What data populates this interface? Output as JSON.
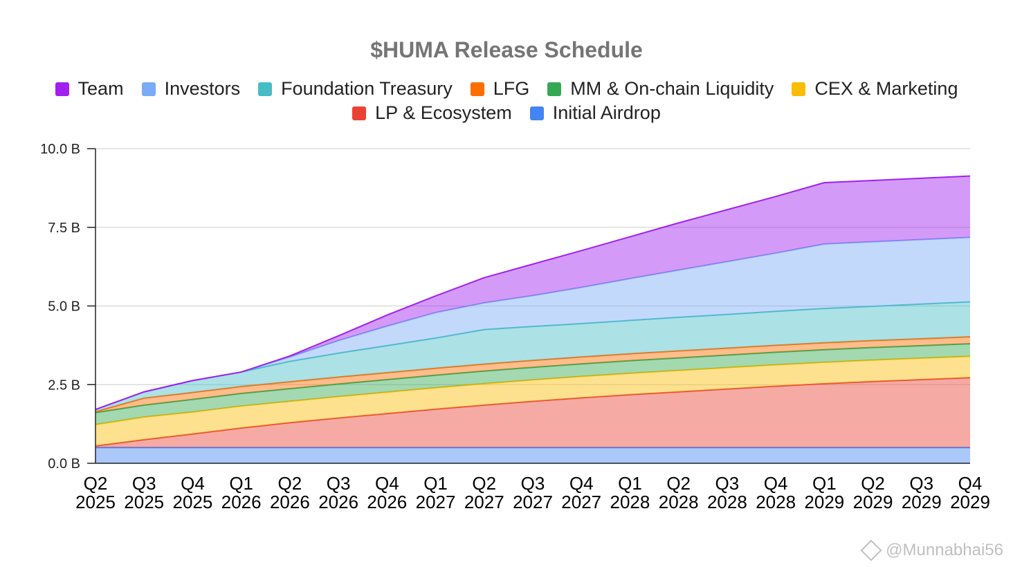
{
  "chart_data": {
    "type": "area",
    "stacked": true,
    "title": "$HUMA Release Schedule",
    "xlabel": "",
    "ylabel": "",
    "ylim": [
      0,
      10
    ],
    "y_ticks": [
      0,
      2.5,
      5,
      7.5,
      10
    ],
    "y_tick_labels": [
      "0.0 B",
      "2.5 B",
      "5.0 B",
      "7.5 B",
      "10.0 B"
    ],
    "grid": true,
    "legend_position": "top",
    "categories": [
      [
        "Q2",
        "2025"
      ],
      [
        "Q3",
        "2025"
      ],
      [
        "Q4",
        "2025"
      ],
      [
        "Q1",
        "2026"
      ],
      [
        "Q2",
        "2026"
      ],
      [
        "Q3",
        "2026"
      ],
      [
        "Q4",
        "2026"
      ],
      [
        "Q1",
        "2027"
      ],
      [
        "Q2",
        "2027"
      ],
      [
        "Q3",
        "2027"
      ],
      [
        "Q4",
        "2027"
      ],
      [
        "Q1",
        "2028"
      ],
      [
        "Q2",
        "2028"
      ],
      [
        "Q3",
        "2028"
      ],
      [
        "Q4",
        "2028"
      ],
      [
        "Q1",
        "2029"
      ],
      [
        "Q2",
        "2029"
      ],
      [
        "Q3",
        "2029"
      ],
      [
        "Q4",
        "2029"
      ]
    ],
    "series": [
      {
        "name": "Initial Airdrop",
        "color": "#4285f4",
        "values": [
          0.5,
          0.5,
          0.5,
          0.5,
          0.5,
          0.5,
          0.5,
          0.5,
          0.5,
          0.5,
          0.5,
          0.5,
          0.5,
          0.5,
          0.5,
          0.5,
          0.5,
          0.5,
          0.5
        ]
      },
      {
        "name": "LP & Ecosystem",
        "color": "#ea4335",
        "values": [
          0.05,
          0.25,
          0.43,
          0.62,
          0.79,
          0.94,
          1.08,
          1.22,
          1.35,
          1.47,
          1.58,
          1.68,
          1.77,
          1.86,
          1.95,
          2.03,
          2.1,
          2.16,
          2.22
        ]
      },
      {
        "name": "CEX & Marketing",
        "color": "#fbbc04",
        "values": [
          0.68,
          0.72,
          0.7,
          0.7,
          0.68,
          0.68,
          0.68,
          0.68,
          0.68,
          0.68,
          0.68,
          0.68,
          0.68,
          0.68,
          0.68,
          0.68,
          0.68,
          0.68,
          0.68
        ]
      },
      {
        "name": "MM & On-chain Liquidity",
        "color": "#34a853",
        "values": [
          0.38,
          0.38,
          0.4,
          0.4,
          0.4,
          0.4,
          0.4,
          0.4,
          0.4,
          0.4,
          0.4,
          0.4,
          0.4,
          0.4,
          0.4,
          0.4,
          0.4,
          0.4,
          0.4
        ]
      },
      {
        "name": "LFG",
        "color": "#ff6d01",
        "values": [
          0.03,
          0.22,
          0.22,
          0.22,
          0.22,
          0.22,
          0.22,
          0.22,
          0.22,
          0.22,
          0.22,
          0.22,
          0.22,
          0.22,
          0.22,
          0.22,
          0.22,
          0.22,
          0.22
        ]
      },
      {
        "name": "Foundation Treasury",
        "color": "#46bdc6",
        "values": [
          0.07,
          0.2,
          0.38,
          0.46,
          0.65,
          0.76,
          0.86,
          0.96,
          1.1,
          1.08,
          1.06,
          1.06,
          1.07,
          1.07,
          1.08,
          1.09,
          1.09,
          1.1,
          1.11
        ]
      },
      {
        "name": "Investors",
        "color": "#7baaf7",
        "values": [
          0,
          0,
          0,
          0,
          0.14,
          0.4,
          0.62,
          0.81,
          0.85,
          0.98,
          1.15,
          1.33,
          1.5,
          1.68,
          1.85,
          2.05,
          2.05,
          2.05,
          2.05
        ]
      },
      {
        "name": "Team",
        "color": "#a020f0",
        "values": [
          0,
          0,
          0,
          0,
          0.03,
          0.15,
          0.35,
          0.53,
          0.8,
          1.0,
          1.17,
          1.33,
          1.5,
          1.65,
          1.8,
          1.95,
          1.95,
          1.95,
          1.95
        ]
      }
    ]
  },
  "legend": {
    "row1": [
      {
        "label": "Team",
        "color": "#a020f0"
      },
      {
        "label": "Investors",
        "color": "#7baaf7"
      },
      {
        "label": "Foundation Treasury",
        "color": "#46bdc6"
      },
      {
        "label": "LFG",
        "color": "#ff6d01"
      },
      {
        "label": "MM & On-chain Liquidity",
        "color": "#34a853"
      },
      {
        "label": "CEX & Marketing",
        "color": "#fbbc04"
      }
    ],
    "row2": [
      {
        "label": "LP & Ecosystem",
        "color": "#ea4335"
      },
      {
        "label": "Initial Airdrop",
        "color": "#4285f4"
      }
    ]
  },
  "watermark": {
    "text": "@Munnabhai56",
    "icon": "binance-diamond-icon"
  }
}
